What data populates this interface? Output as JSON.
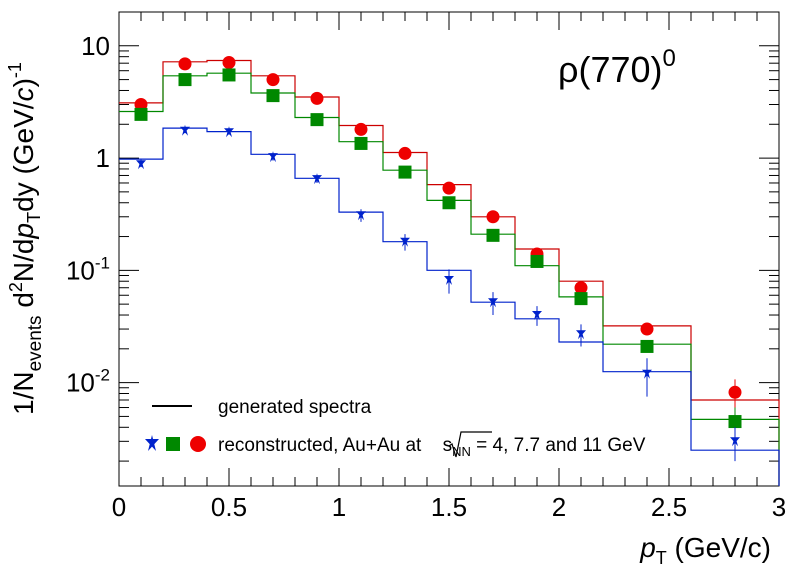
{
  "chart_data": {
    "type": "scatter",
    "title": "",
    "annotation": {
      "base": "ρ(770)",
      "sup": "0"
    },
    "xlabel": {
      "italic": "p",
      "sub": "T",
      "rest": " (GeV/c)"
    },
    "ylabel": {
      "p1": "1/N",
      "sub1": "events",
      "p2": " d",
      "sup2": "2",
      "p3": "N/d",
      "p4": "p",
      "sub4": "T",
      "p5": "dy (GeV/",
      "p6": "c",
      "p7": ")",
      "sup7": "-1"
    },
    "xlim": [
      0,
      3
    ],
    "ylim": [
      0.0012,
      20
    ],
    "yscale": "log",
    "x_ticks": [
      {
        "v": 0,
        "label": "0"
      },
      {
        "v": 0.5,
        "label": "0.5"
      },
      {
        "v": 1,
        "label": "1"
      },
      {
        "v": 1.5,
        "label": "1.5"
      },
      {
        "v": 2,
        "label": "2"
      },
      {
        "v": 2.5,
        "label": "2.5"
      },
      {
        "v": 3,
        "label": "3"
      }
    ],
    "y_ticks": [
      {
        "v": 10,
        "label": "10"
      },
      {
        "v": 1,
        "label": "1"
      },
      {
        "v": 0.1,
        "base": "10",
        "exp": "-1"
      },
      {
        "v": 0.01,
        "base": "10",
        "exp": "-2"
      }
    ],
    "bin_edges": [
      0,
      0.2,
      0.4,
      0.6,
      0.8,
      1.0,
      1.2,
      1.4,
      1.6,
      1.8,
      2.0,
      2.2,
      2.6,
      3.0
    ],
    "histograms": [
      {
        "name": "generated 11 GeV",
        "color": "#cc0000",
        "values": [
          3.1,
          7.2,
          7.4,
          5.4,
          3.5,
          1.95,
          1.12,
          0.58,
          0.3,
          0.155,
          0.08,
          0.032,
          0.007
        ]
      },
      {
        "name": "generated 7.7 GeV",
        "color": "#008800",
        "values": [
          2.6,
          5.4,
          5.7,
          3.8,
          2.3,
          1.4,
          0.78,
          0.42,
          0.21,
          0.11,
          0.058,
          0.022,
          0.0047
        ]
      },
      {
        "name": "generated 4 GeV",
        "color": "#0022cc",
        "values": [
          0.98,
          1.85,
          1.72,
          1.08,
          0.66,
          0.33,
          0.18,
          0.1,
          0.052,
          0.037,
          0.023,
          0.0125,
          0.0025
        ]
      }
    ],
    "series": [
      {
        "name": "Au+Au 11 GeV",
        "marker": "circle",
        "color": "#ee0000",
        "points": [
          [
            0.1,
            3.0
          ],
          [
            0.3,
            6.9
          ],
          [
            0.5,
            7.1
          ],
          [
            0.7,
            5.0
          ],
          [
            0.9,
            3.4
          ],
          [
            1.1,
            1.8
          ],
          [
            1.3,
            1.1
          ],
          [
            1.5,
            0.54
          ],
          [
            1.7,
            0.3
          ],
          [
            1.9,
            0.14
          ],
          [
            2.1,
            0.07
          ],
          [
            2.4,
            0.03
          ],
          [
            2.8,
            0.0082
          ]
        ],
        "errors": [
          0.1,
          0.2,
          0.2,
          0.15,
          0.1,
          0.06,
          0.04,
          0.02,
          0.012,
          0.008,
          0.005,
          0.003,
          0.0025
        ]
      },
      {
        "name": "Au+Au 7.7 GeV",
        "marker": "square",
        "color": "#008800",
        "points": [
          [
            0.1,
            2.45
          ],
          [
            0.3,
            5.0
          ],
          [
            0.5,
            5.5
          ],
          [
            0.7,
            3.6
          ],
          [
            0.9,
            2.2
          ],
          [
            1.1,
            1.35
          ],
          [
            1.3,
            0.75
          ],
          [
            1.5,
            0.4
          ],
          [
            1.7,
            0.205
          ],
          [
            1.9,
            0.12
          ],
          [
            2.1,
            0.056
          ],
          [
            2.4,
            0.021
          ],
          [
            2.8,
            0.0045
          ]
        ],
        "errors": [
          0.08,
          0.15,
          0.15,
          0.1,
          0.07,
          0.05,
          0.03,
          0.015,
          0.01,
          0.007,
          0.004,
          0.002,
          0.0015
        ]
      },
      {
        "name": "Au+Au 4 GeV",
        "marker": "star",
        "color": "#0022cc",
        "points": [
          [
            0.1,
            0.88
          ],
          [
            0.3,
            1.75
          ],
          [
            0.5,
            1.7
          ],
          [
            0.7,
            1.02
          ],
          [
            0.9,
            0.65
          ],
          [
            1.1,
            0.31
          ],
          [
            1.3,
            0.18
          ],
          [
            1.5,
            0.082
          ],
          [
            1.7,
            0.052
          ],
          [
            1.9,
            0.04
          ],
          [
            2.1,
            0.027
          ],
          [
            2.4,
            0.012
          ],
          [
            2.8,
            0.003
          ]
        ],
        "errors": [
          0.05,
          0.08,
          0.08,
          0.07,
          0.05,
          0.04,
          0.03,
          0.02,
          0.012,
          0.008,
          0.006,
          0.0045,
          0.001
        ]
      }
    ],
    "legend": {
      "placement": "bottom-left",
      "line_label": "generated spectra",
      "marker_label_prefix": "reconstructed, Au+Au at ",
      "sqrt_s": "s",
      "sqrt_sub": "NN",
      "marker_label_suffix": " = 4, 7.7 and 11 GeV"
    }
  }
}
